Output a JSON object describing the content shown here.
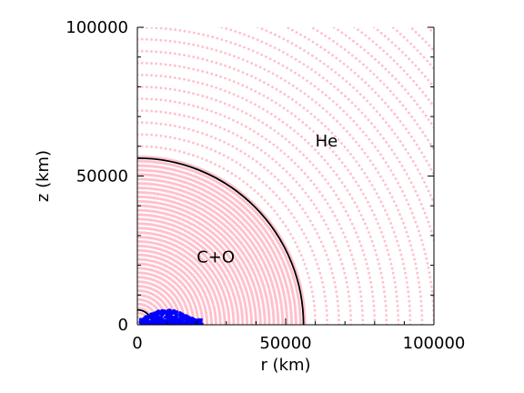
{
  "chart_data": {
    "type": "scatter",
    "title": "",
    "xlabel": "r (km)",
    "ylabel": "z (km)",
    "xlim": [
      0,
      100000
    ],
    "ylim": [
      0,
      100000
    ],
    "x_ticks": [
      0,
      50000,
      100000
    ],
    "y_ticks": [
      0,
      50000,
      100000
    ],
    "x_tick_labels": [
      "0",
      "50000",
      "100000"
    ],
    "y_tick_labels": [
      "0",
      "50000",
      "100000"
    ],
    "x_minor_step": 10000,
    "y_minor_step": 10000,
    "grid": false,
    "legend": "none",
    "annotations": [
      {
        "text": "He",
        "x": 60000,
        "y": 60000
      },
      {
        "text": "C+O",
        "x": 20000,
        "y": 21000
      }
    ],
    "boundaries": [
      {
        "name": "C+O / He interface",
        "radius": 56000,
        "color": "#000000"
      },
      {
        "name": "inner core",
        "radius": 5000,
        "color": "#000000"
      }
    ],
    "particle_layers": {
      "he_shell": {
        "color": "#ffc0cb",
        "radii": [
          60000,
          64000,
          68000,
          72000,
          76000,
          80000,
          84000,
          88000,
          92000,
          96000,
          100000,
          104000,
          108000,
          112000,
          116000,
          120000,
          124000,
          128000,
          132000,
          136000,
          140000
        ]
      },
      "co_core": {
        "color": "#ffc0cb",
        "r_min": 1000,
        "r_max": 57000,
        "spacing": 1500
      }
    },
    "ejecta": {
      "color": "#0000ff",
      "r_range": [
        1000,
        22000
      ],
      "z_range": [
        0,
        5000
      ]
    }
  }
}
